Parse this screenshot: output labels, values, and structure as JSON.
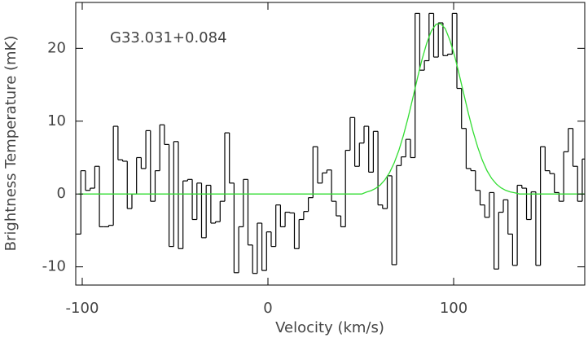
{
  "chart_data": {
    "type": "step",
    "annotation": "G33.031+0.084",
    "xlabel": "Velocity (km/s)",
    "ylabel": "Brightness Temperature (mK)",
    "xlim": [
      -103.5,
      170.6
    ],
    "ylim": [
      -12.5,
      26.3
    ],
    "xticks": [
      -100,
      0,
      100
    ],
    "yticks": [
      -10,
      0,
      10,
      20
    ],
    "x": [
      -102,
      -99.5,
      -97,
      -94.5,
      -92,
      -89.5,
      -87,
      -84.5,
      -82,
      -79.5,
      -77,
      -74.5,
      -72,
      -69.5,
      -67,
      -64.5,
      -62,
      -59.5,
      -57,
      -54.5,
      -52,
      -49.5,
      -47,
      -44.5,
      -42,
      -39.5,
      -37,
      -34.5,
      -32,
      -29.5,
      -27,
      -24.5,
      -22,
      -19.5,
      -17,
      -14.5,
      -12,
      -9.5,
      -7,
      -4.5,
      -2,
      0.5,
      3,
      5.5,
      8,
      10.5,
      13,
      15.5,
      18,
      20.5,
      23,
      25.5,
      28,
      30.5,
      33,
      35.5,
      38,
      40.5,
      43,
      45.5,
      48,
      50.5,
      53,
      55.5,
      58,
      60.5,
      63,
      65.5,
      68,
      70.5,
      73,
      75.5,
      78,
      80.5,
      83,
      85.5,
      88,
      90.5,
      93,
      95.5,
      98,
      100.5,
      103,
      105.5,
      108,
      110.5,
      113,
      115.5,
      118,
      120.5,
      123,
      125.5,
      128,
      130.5,
      133,
      135.5,
      138,
      140.5,
      143,
      145.5,
      148,
      150.5,
      153,
      155.5,
      158,
      160.5,
      163,
      165.5,
      168,
      170.5
    ],
    "series": [
      {
        "style": "step",
        "color": "#000000",
        "values": [
          -5.5,
          3.2,
          0.5,
          0.8,
          3.8,
          -4.5,
          -4.5,
          -4.3,
          9.3,
          4.7,
          4.5,
          -2,
          0,
          5,
          3.5,
          8.7,
          -1,
          3.2,
          9.5,
          6.8,
          -7.2,
          7.2,
          -7.5,
          1.8,
          2,
          -3.5,
          1.5,
          -6,
          1.2,
          -4,
          -3.8,
          -1,
          8.4,
          1.5,
          -10.8,
          -4.5,
          2,
          -7,
          -10.9,
          -4,
          -10.5,
          -5.2,
          -7.2,
          -1.5,
          -4.5,
          -2.5,
          -2.6,
          -7.5,
          -3.5,
          -2.4,
          -0.5,
          6.5,
          1.5,
          2.9,
          3.3,
          -1,
          -3,
          -4.5,
          6,
          10.5,
          3.8,
          7,
          9.3,
          3,
          8.6,
          -1.5,
          -2,
          2.5,
          -9.7,
          3.9,
          5.1,
          7.5,
          5,
          24.8,
          17,
          18.3,
          24.8,
          18.8,
          23.5,
          19,
          19.2,
          24.8,
          14.5,
          9,
          3.5,
          3.2,
          0.5,
          -1.5,
          -3.2,
          0.2,
          -10.3,
          -2.5,
          -0.8,
          -5.5,
          -9.8,
          1.2,
          0.8,
          -3.5,
          0.3,
          -9.8,
          6.5,
          3.2,
          2.8,
          0.2,
          -1,
          5.8,
          9,
          3.8,
          -1,
          4.8
        ]
      },
      {
        "style": "line",
        "color": "#33dd33",
        "values": [
          0,
          0,
          0,
          0,
          0,
          0,
          0,
          0,
          0,
          0,
          0,
          0,
          0,
          0,
          0,
          0,
          0,
          0,
          0,
          0,
          0,
          0,
          0,
          0,
          0,
          0,
          0,
          0,
          0,
          0,
          0,
          0,
          0,
          0,
          0,
          0,
          0,
          0,
          0,
          0,
          0,
          0,
          0,
          0,
          0,
          0,
          0,
          0,
          0,
          0,
          0,
          0,
          0,
          0,
          0,
          0,
          0,
          0,
          0,
          0,
          0,
          0,
          0.26,
          0.46,
          0.77,
          1.24,
          1.95,
          2.94,
          4.28,
          5.99,
          8.08,
          10.5,
          13.16,
          15.9,
          18.5,
          20.7,
          22.4,
          23.3,
          23.4,
          22.7,
          21.1,
          19.0,
          16.4,
          13.7,
          11.0,
          8.54,
          6.4,
          4.6,
          3.18,
          2.13,
          1.37,
          0.85,
          0.51,
          0.29,
          0.16,
          0,
          0,
          0,
          0,
          0,
          0,
          0,
          0,
          0,
          0,
          0,
          0,
          0,
          0,
          0
        ]
      }
    ]
  }
}
